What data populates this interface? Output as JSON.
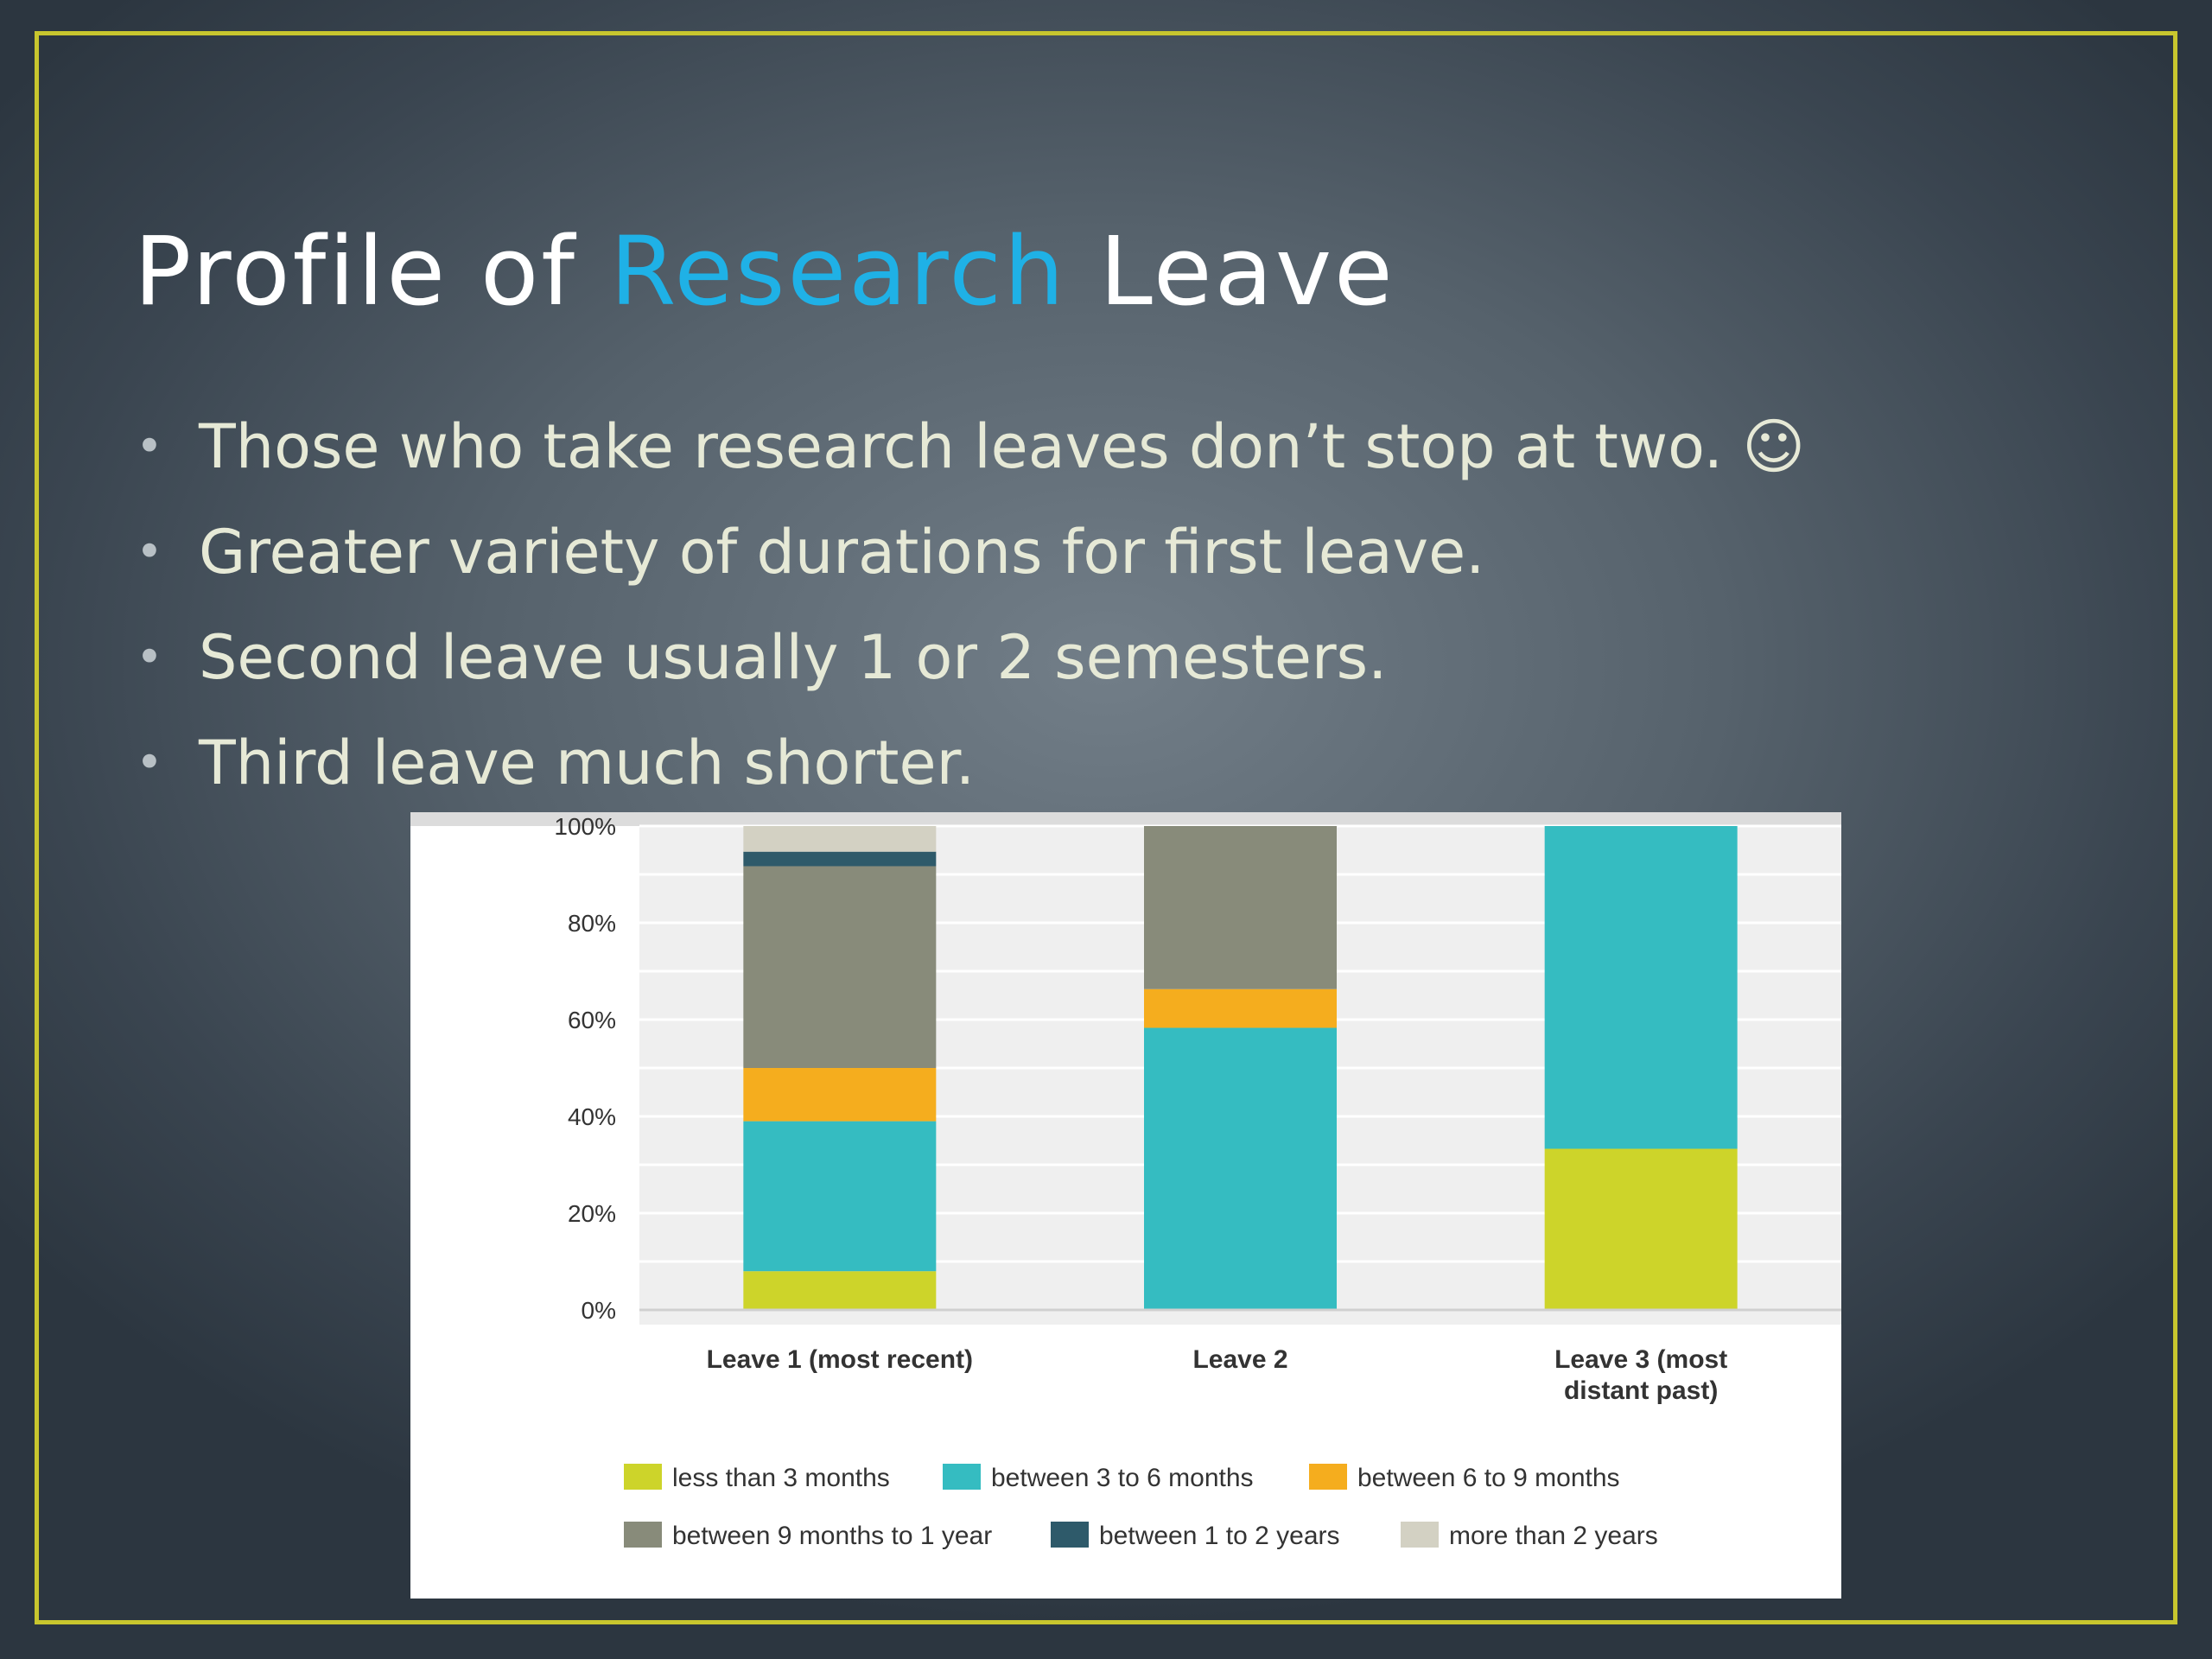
{
  "slide": {
    "title_part1": "Profile of ",
    "title_accent": "Research",
    "title_part2": " Leave",
    "bullet_glyph": "•",
    "bullets": [
      "Those who take research leaves don’t stop at two. ☺",
      "Greater variety of durations for first leave.",
      "Second leave usually 1 or 2 semesters.",
      "Third leave much shorter."
    ]
  },
  "colors": {
    "frame": "#c8c62e",
    "title_accent": "#1fb1e6",
    "bullet_text": "#e6e9d6"
  },
  "chart_data": {
    "type": "bar",
    "stacked": true,
    "categories": [
      [
        "Leave 1 (most recent)"
      ],
      [
        "Leave 2"
      ],
      [
        "Leave 3 (most",
        "distant past)"
      ]
    ],
    "series": [
      {
        "name": "less than 3 months",
        "color": "#cdd42a",
        "values": [
          8,
          0,
          33.3
        ]
      },
      {
        "name": "between 3 to 6 months",
        "color": "#35bcc1",
        "values": [
          31,
          58.3,
          66.7
        ]
      },
      {
        "name": "between 6 to 9 months",
        "color": "#f5ad1e",
        "values": [
          11,
          8,
          0
        ]
      },
      {
        "name": "between 9 months to 1 year",
        "color": "#888b7a",
        "values": [
          41.7,
          33.7,
          0
        ]
      },
      {
        "name": "between 1 to 2 years",
        "color": "#2e5a6a",
        "values": [
          3,
          0,
          0
        ]
      },
      {
        "name": "more than 2 years",
        "color": "#d3d1c3",
        "values": [
          5.3,
          0,
          0
        ]
      }
    ],
    "y_ticks": [
      "0%",
      "20%",
      "40%",
      "60%",
      "80%",
      "100%"
    ],
    "ylim": [
      0,
      100
    ],
    "grid": true,
    "legend_position": "bottom"
  }
}
